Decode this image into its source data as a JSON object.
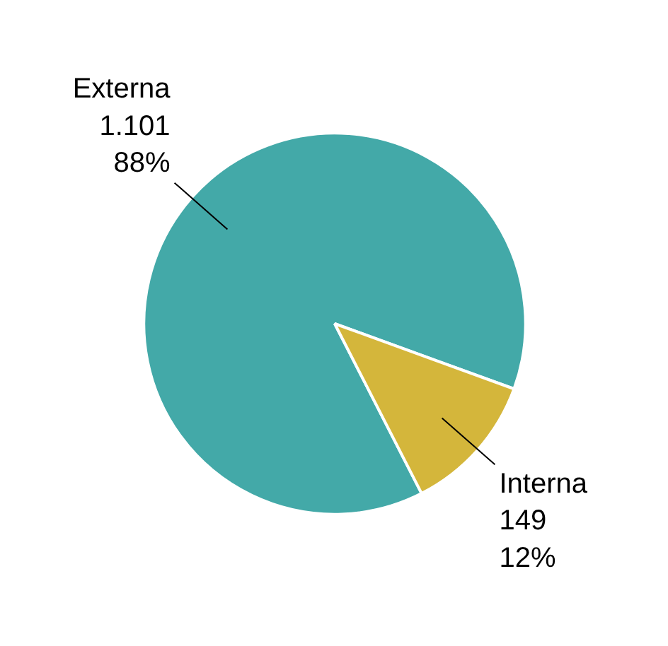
{
  "chart_data": {
    "type": "pie",
    "categories": [
      "Externa",
      "Interna"
    ],
    "values": [
      1101,
      149
    ],
    "colors": [
      "#43a9a8",
      "#d4b63b"
    ],
    "value_labels": [
      "1.101\n88%",
      "149\n12%"
    ]
  }
}
